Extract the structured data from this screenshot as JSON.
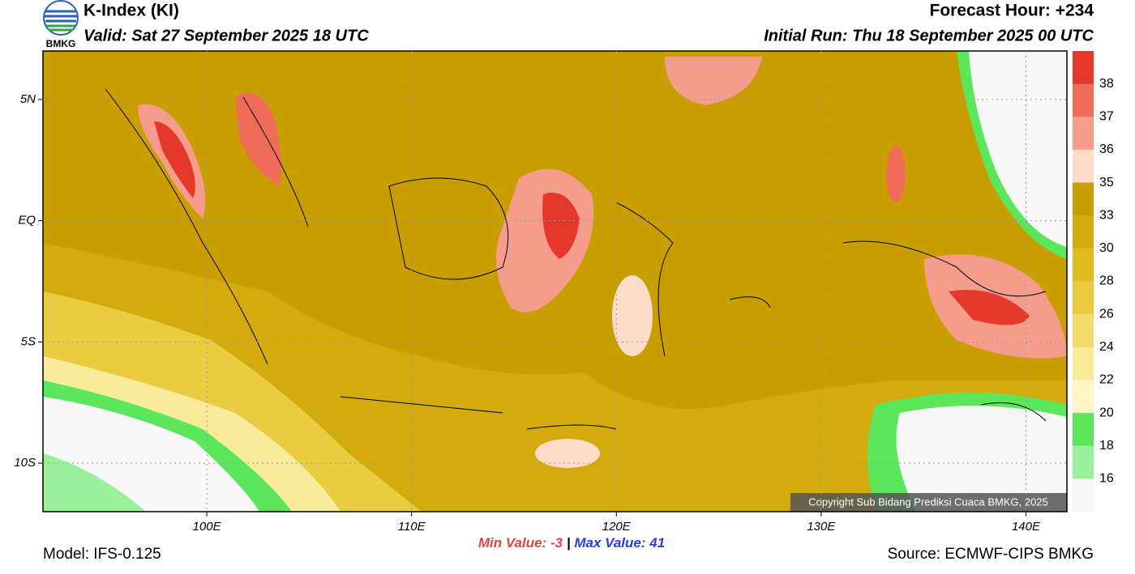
{
  "header": {
    "logo_text": "BMKG",
    "title": "K-Index (KI)",
    "valid": "Valid: Sat 27 September 2025 18 UTC",
    "forecast_hour": "Forecast Hour: +234",
    "initial_run": "Initial Run: Thu 18 September 2025 00 UTC"
  },
  "map": {
    "xlim": [
      92,
      142
    ],
    "ylim": [
      -12,
      7
    ],
    "xticks": [
      {
        "value": 100,
        "label": "100E"
      },
      {
        "value": 110,
        "label": "110E"
      },
      {
        "value": 120,
        "label": "120E"
      },
      {
        "value": 130,
        "label": "130E"
      },
      {
        "value": 140,
        "label": "140E"
      }
    ],
    "yticks": [
      {
        "value": 5,
        "label": "5N"
      },
      {
        "value": 0,
        "label": "EQ"
      },
      {
        "value": -5,
        "label": "5S"
      },
      {
        "value": -10,
        "label": "10S"
      }
    ],
    "copyright": "Copyright Sub Bidang Prediksi Cuaca BMKG, 2025"
  },
  "colorbar": {
    "levels": [
      38,
      37,
      36,
      35,
      33,
      30,
      28,
      26,
      24,
      22,
      20,
      18,
      16
    ],
    "colors": [
      "#e4392a",
      "#f06c58",
      "#f59c8c",
      "#fcdcc8",
      "#c89e00",
      "#d3ab0e",
      "#dfbc20",
      "#e9cc40",
      "#f2dc6c",
      "#f8eb9c",
      "#fdf6c6",
      "#5ce65c",
      "#9cf09c",
      "#f8f8f8"
    ]
  },
  "stats": {
    "min_label": "Min Value:",
    "min_value": -3,
    "separator": "|",
    "max_label": "Max Value:",
    "max_value": 41
  },
  "footer": {
    "model": "Model: IFS-0.125",
    "source": "Source: ECMWF-CIPS BMKG"
  }
}
